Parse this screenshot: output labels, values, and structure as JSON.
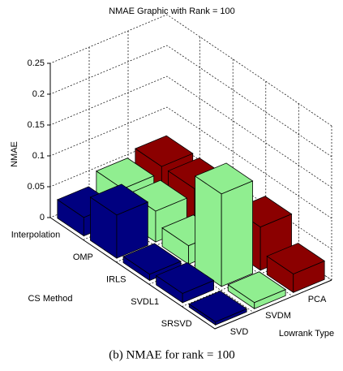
{
  "chart_data": {
    "type": "bar3d",
    "title": "NMAE Graphic with Rank = 100",
    "xlabel": "CS Method",
    "ylabel": "Lowrank Type",
    "zlabel": "NMAE",
    "caption": "(b) NMAE for rank = 100",
    "categories": [
      "Interpolation",
      "OMP",
      "IRLS",
      "SVDL1",
      "SRSVD"
    ],
    "series": [
      {
        "name": "SVD",
        "color": "#000080",
        "values": [
          0.03,
          0.07,
          0.01,
          0.015,
          0.005
        ]
      },
      {
        "name": "SVDM",
        "color": "#90ee90",
        "values": [
          0.05,
          0.05,
          0.03,
          0.15,
          0.01
        ]
      },
      {
        "name": "PCA",
        "color": "#8b0000",
        "values": [
          0.06,
          0.06,
          0.03,
          0.07,
          0.03
        ]
      }
    ],
    "zlim": [
      0,
      0.25
    ],
    "zticks": [
      0,
      0.05,
      0.1,
      0.15,
      0.2,
      0.25
    ],
    "grid": true
  }
}
